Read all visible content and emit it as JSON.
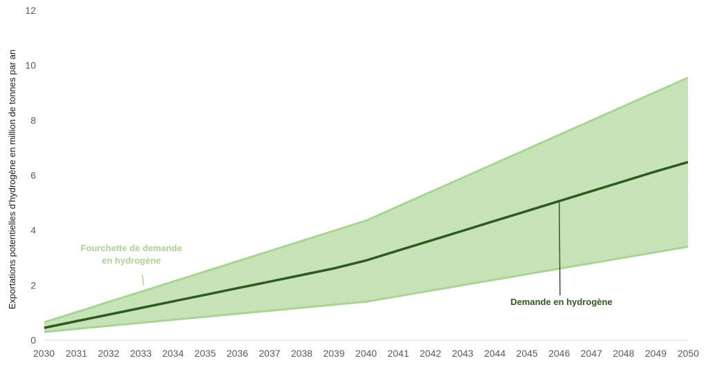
{
  "chart_data": {
    "type": "area",
    "ylabel": "Exportations potentielles d’hydrogène en million de tonnes par an",
    "xlabel": "",
    "ylim": [
      0,
      12
    ],
    "yticks": [
      0,
      2,
      4,
      6,
      8,
      10,
      12
    ],
    "categories": [
      "2030",
      "2031",
      "2032",
      "2033",
      "2034",
      "2035",
      "2036",
      "2037",
      "2038",
      "2039",
      "2040",
      "2041",
      "2042",
      "2043",
      "2044",
      "2045",
      "2046",
      "2047",
      "2048",
      "2049",
      "2050"
    ],
    "range_band": {
      "lower": [
        0.3,
        0.41,
        0.52,
        0.63,
        0.74,
        0.85,
        0.96,
        1.07,
        1.18,
        1.29,
        1.4,
        1.6,
        1.8,
        2.0,
        2.2,
        2.4,
        2.6,
        2.8,
        3.0,
        3.2,
        3.4
      ],
      "upper": [
        0.65,
        1.02,
        1.39,
        1.76,
        2.13,
        2.5,
        2.87,
        3.24,
        3.61,
        3.98,
        4.35,
        4.87,
        5.39,
        5.91,
        6.43,
        6.95,
        7.47,
        7.99,
        8.51,
        9.03,
        9.55
      ],
      "color": "#a8d591",
      "fill": "#cfe8c2"
    },
    "series": [
      {
        "values": [
          0.45,
          0.69,
          0.93,
          1.17,
          1.41,
          1.65,
          1.89,
          2.13,
          2.37,
          2.61,
          2.9,
          3.26,
          3.62,
          3.98,
          4.34,
          4.7,
          5.06,
          5.42,
          5.78,
          6.14,
          6.48
        ],
        "color": "#2f5a1f"
      }
    ],
    "annotations": [
      {
        "text_lines": [
          "Fourchette de demande",
          "en hydrogène"
        ],
        "category": "2033",
        "value": 1.8,
        "color": "#a8d591"
      },
      {
        "text_lines": [
          "Demande en hydrogène"
        ],
        "category": "2046",
        "value": 5.06,
        "color": "#2f5a1f"
      }
    ],
    "grid": false,
    "legend": "none"
  }
}
